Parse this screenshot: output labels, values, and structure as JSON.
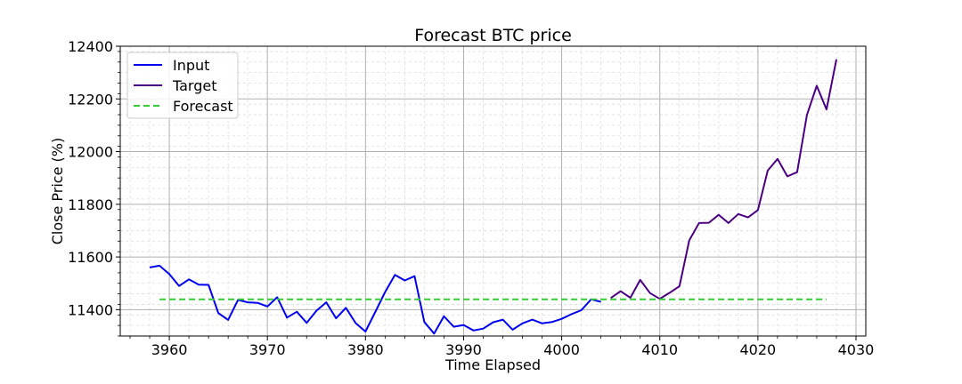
{
  "chart_data": {
    "type": "line",
    "title": "Forecast BTC price",
    "xlabel": "Time Elapsed",
    "ylabel": "Close Price (%)",
    "xlim": [
      3955,
      4031
    ],
    "ylim": [
      11300,
      12400
    ],
    "xticks": [
      3960,
      3970,
      3980,
      3990,
      4000,
      4010,
      4020,
      4030
    ],
    "yticks": [
      11400,
      11600,
      11800,
      12000,
      12200,
      12400
    ],
    "grid": true,
    "legend_position": "upper-left",
    "series": [
      {
        "name": "Input",
        "color": "#0000ee",
        "style": "solid",
        "x": [
          3958,
          3959,
          3960,
          3961,
          3962,
          3963,
          3964,
          3965,
          3966,
          3967,
          3968,
          3969,
          3970,
          3971,
          3972,
          3973,
          3974,
          3975,
          3976,
          3977,
          3978,
          3979,
          3980,
          3981,
          3982,
          3983,
          3984,
          3985,
          3986,
          3987,
          3988,
          3989,
          3990,
          3991,
          3992,
          3993,
          3994,
          3995,
          3996,
          3997,
          3998,
          3999,
          4000,
          4001,
          4002,
          4003,
          4004
        ],
        "y": [
          11560,
          11567,
          11535,
          11490,
          11515,
          11495,
          11494,
          11387,
          11361,
          11437,
          11428,
          11426,
          11412,
          11447,
          11370,
          11392,
          11350,
          11396,
          11428,
          11367,
          11407,
          11349,
          11317,
          11391,
          11467,
          11532,
          11511,
          11527,
          11353,
          11309,
          11375,
          11335,
          11342,
          11321,
          11328,
          11352,
          11362,
          11324,
          11348,
          11362,
          11348,
          11353,
          11365,
          11383,
          11398,
          11439,
          11430
        ]
      },
      {
        "name": "Target",
        "color": "#4b0082",
        "style": "solid",
        "x": [
          4005,
          4006,
          4007,
          4008,
          4009,
          4010,
          4011,
          4012,
          4013,
          4014,
          4015,
          4016,
          4017,
          4018,
          4019,
          4020,
          4021,
          4022,
          4023,
          4024,
          4025,
          4026,
          4027,
          4028
        ],
        "y": [
          11444,
          11470,
          11445,
          11513,
          11463,
          11441,
          11464,
          11489,
          11663,
          11729,
          11730,
          11760,
          11729,
          11763,
          11750,
          11778,
          11928,
          11972,
          11906,
          11922,
          12139,
          12250,
          12160,
          12350
        ]
      },
      {
        "name": "Forecast",
        "color": "#33cc33",
        "style": "dashed",
        "x": [
          3959,
          4027
        ],
        "y": [
          11439,
          11439
        ]
      }
    ]
  }
}
